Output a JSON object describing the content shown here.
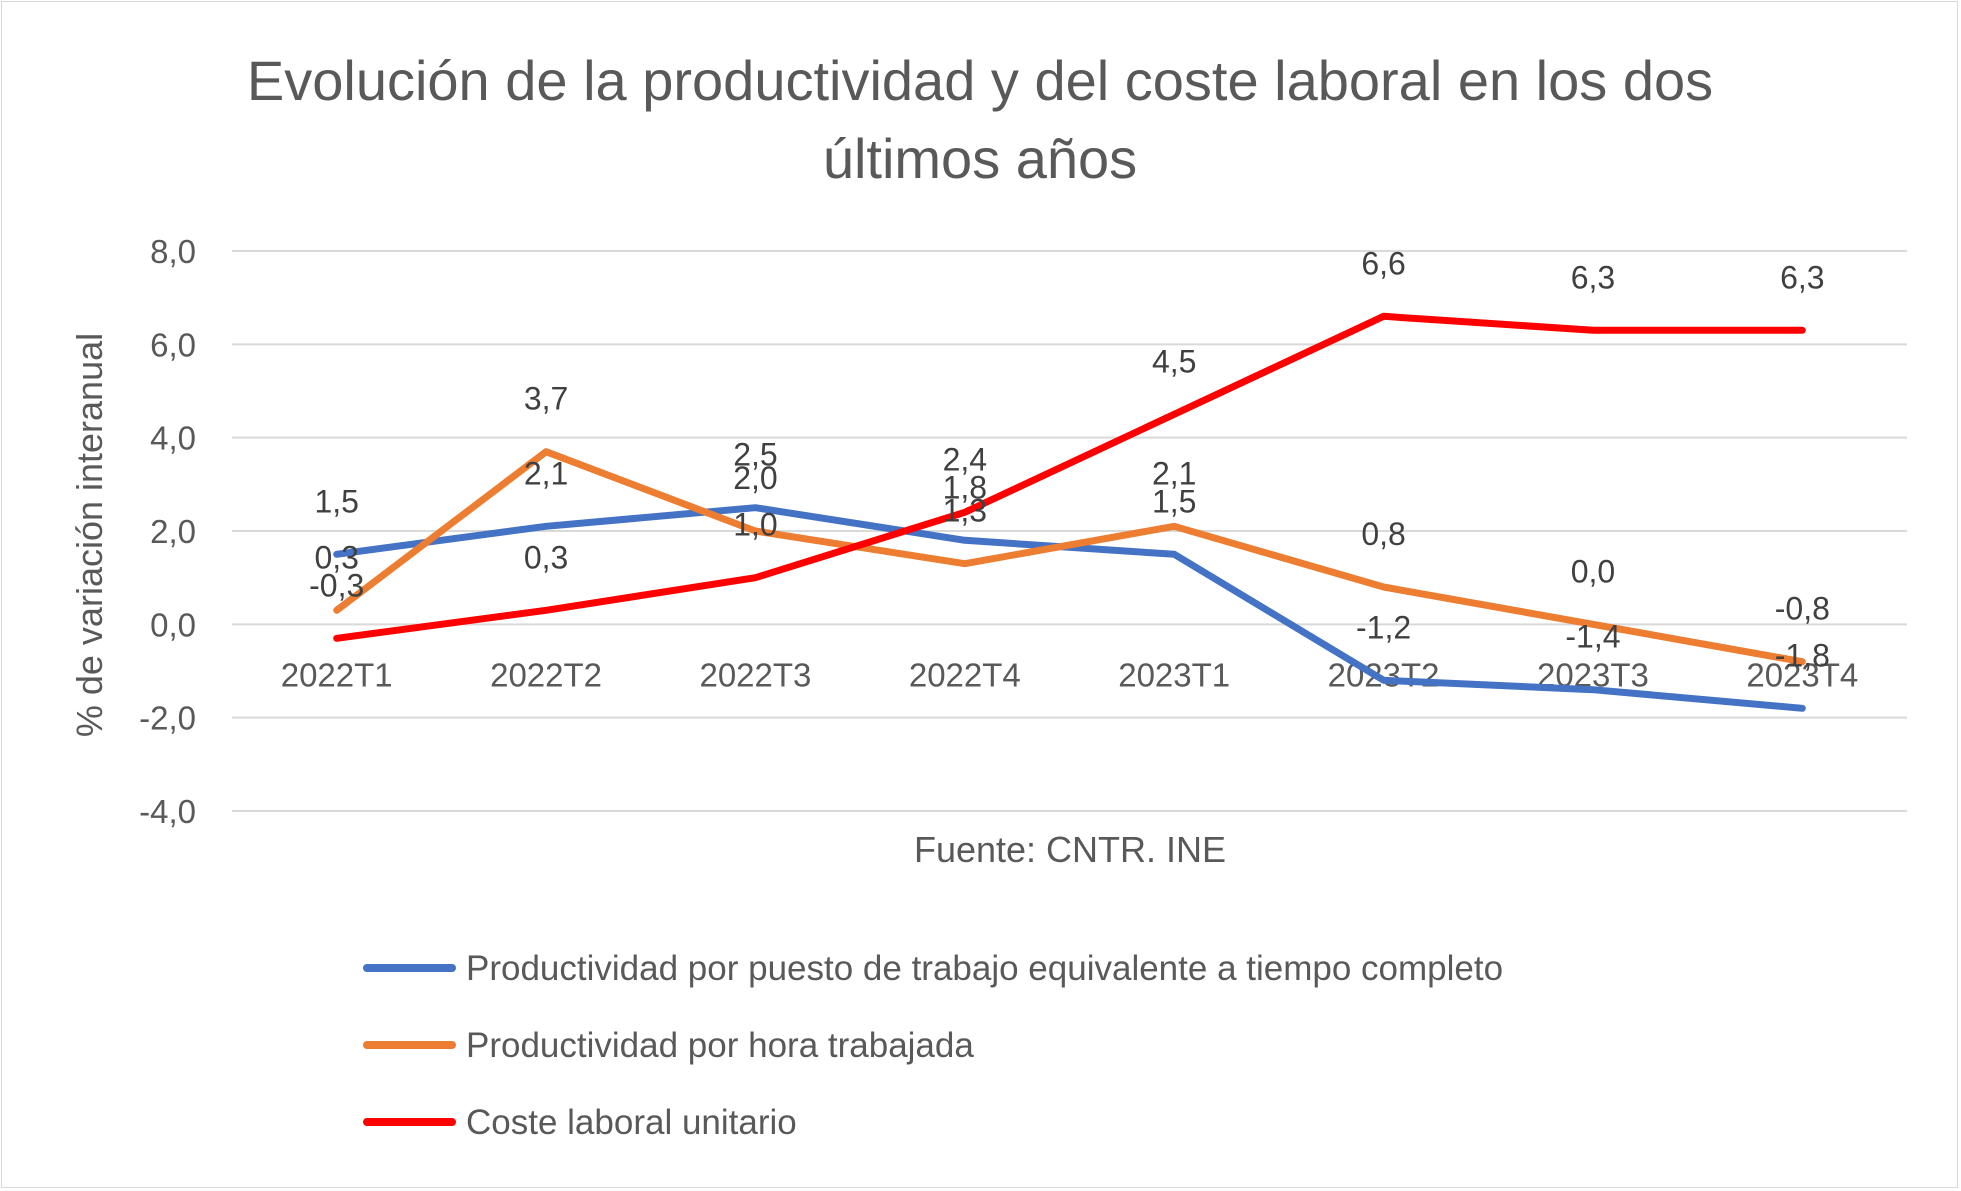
{
  "chart_data": {
    "type": "line",
    "title_line1": "Evolución de la productividad y del coste laboral en los dos",
    "title_line2": "últimos años",
    "ylabel": "% de variación interanual",
    "xlabel": "Fuente: CNTR. INE",
    "categories": [
      "2022T1",
      "2022T2",
      "2022T3",
      "2022T4",
      "2023T1",
      "2023T2",
      "2023T3",
      "2023T4"
    ],
    "yticks": [
      "8,0",
      "6,0",
      "4,0",
      "2,0",
      "0,0",
      "-2,0",
      "-4,0"
    ],
    "ylim": [
      -4,
      8
    ],
    "grid": true,
    "legend_position": "bottom",
    "series": [
      {
        "name": "Productividad por puesto de trabajo equivalente a tiempo completo",
        "color": "#4472C4",
        "values": [
          1.5,
          2.1,
          2.5,
          1.8,
          1.5,
          -1.2,
          -1.4,
          -1.8
        ],
        "labels": [
          "1,5",
          "2,1",
          "2,5",
          "1,8",
          "1,5",
          "-1,2",
          "-1,4",
          "-1,8"
        ]
      },
      {
        "name": "Productividad por hora trabajada",
        "color": "#ED7D31",
        "values": [
          0.3,
          3.7,
          2.0,
          1.3,
          2.1,
          0.8,
          0.0,
          -0.8
        ],
        "labels": [
          "0,3",
          "3,7",
          "2,0",
          "1,3",
          "2,1",
          "0,8",
          "0,0",
          "-0,8"
        ]
      },
      {
        "name": "Coste laboral unitario",
        "color": "#FF0000",
        "values": [
          -0.3,
          0.3,
          1.0,
          2.4,
          4.5,
          6.6,
          6.3,
          6.3
        ],
        "labels": [
          "-0,3",
          "0,3",
          "1,0",
          "2,4",
          "4,5",
          "6,6",
          "6,3",
          "6,3"
        ]
      }
    ]
  }
}
